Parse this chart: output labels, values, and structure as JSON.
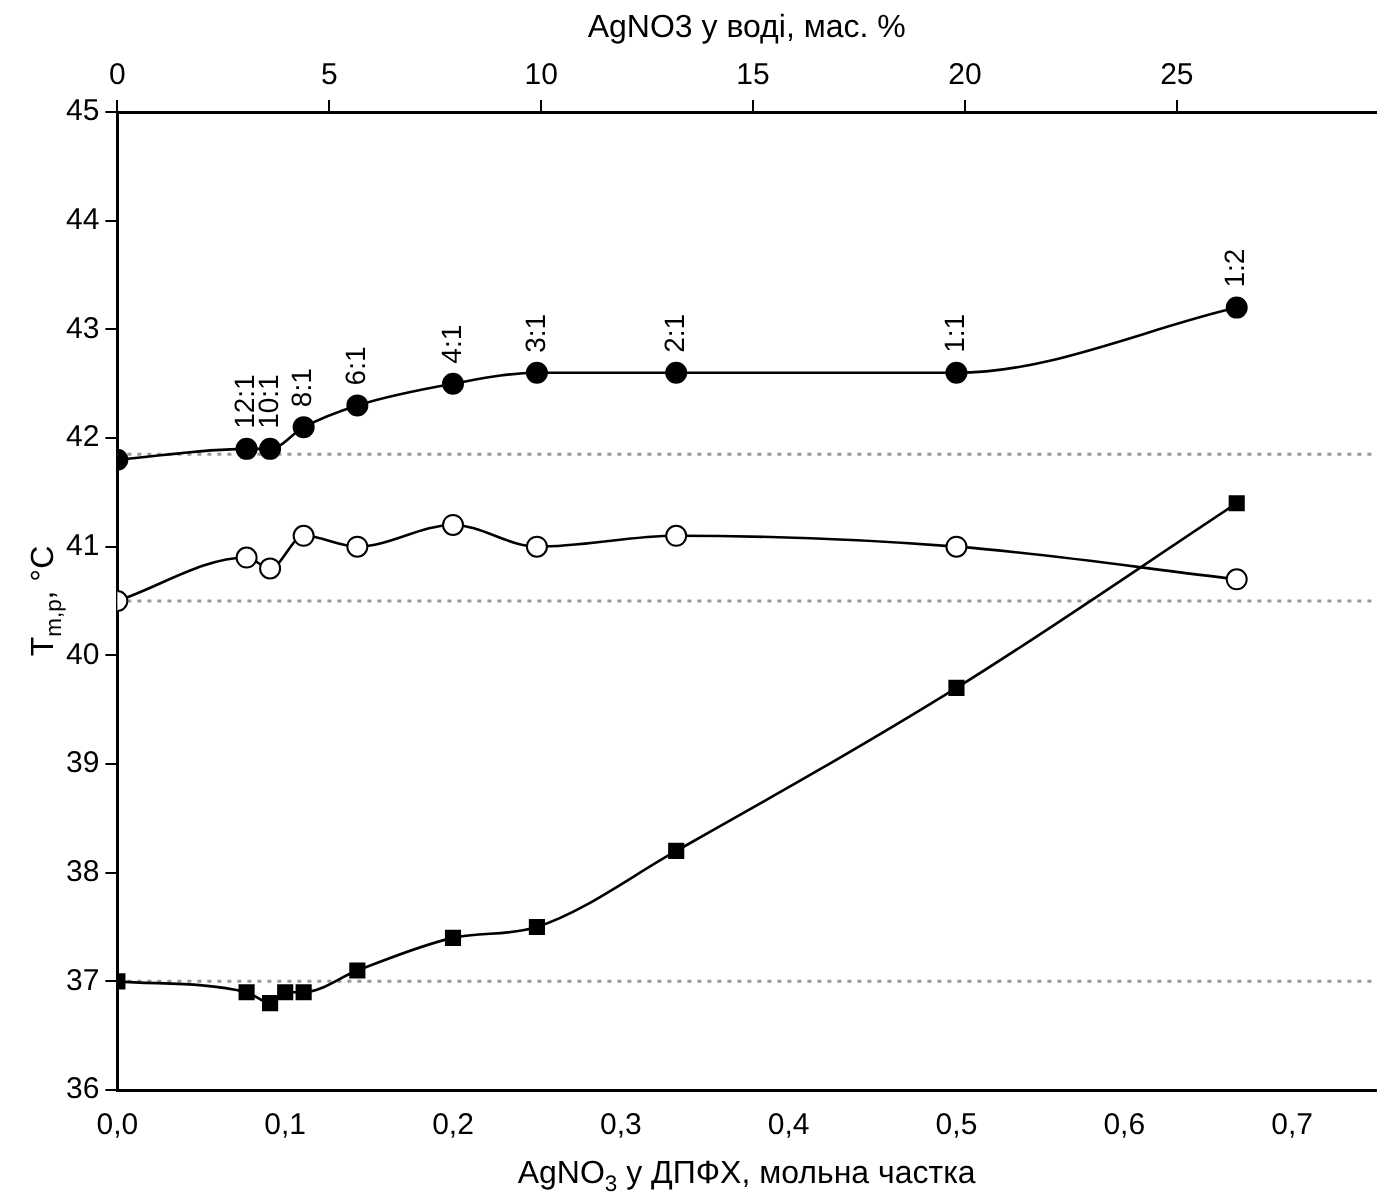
{
  "chart_data": {
    "type": "line",
    "xlabel": "AgNO$_{3}$ у ДПФХ, мольна частка",
    "ylabel": "T$_{m,p}$, °C",
    "x2label": "AgNO3 у воді, мас. %",
    "xlim": [
      0,
      0.75
    ],
    "xticks": [
      {
        "value": 0,
        "label": "0,0"
      },
      {
        "value": 0.1,
        "label": "0,1"
      },
      {
        "value": 0.2,
        "label": "0,2"
      },
      {
        "value": 0.3,
        "label": "0,3"
      },
      {
        "value": 0.4,
        "label": "0,4"
      },
      {
        "value": 0.5,
        "label": "0,5"
      },
      {
        "value": 0.6,
        "label": "0,6"
      },
      {
        "value": 0.7,
        "label": "0,7"
      }
    ],
    "x2lim": [
      0,
      29.7
    ],
    "x2ticks": [
      0,
      5,
      10,
      15,
      20,
      25
    ],
    "ylim": [
      36,
      45
    ],
    "yticks": [
      36,
      37,
      38,
      39,
      40,
      41,
      42,
      43,
      44,
      45
    ],
    "grid": false,
    "legend": false,
    "line_style": "solid",
    "series": [
      {
        "color": "#000000",
        "marker": "circle",
        "x": [
          0,
          0.077,
          0.091,
          0.111,
          0.143,
          0.2,
          0.25,
          0.333,
          0.5,
          0.667
        ],
        "values": [
          41.8,
          41.9,
          41.9,
          42.1,
          42.3,
          42.5,
          42.6,
          42.6,
          42.6,
          43.2
        ]
      },
      {
        "color": "#000000",
        "colors": [
          "#ffffff",
          "#ffffff",
          "#ffffff",
          "#ffffff",
          "#ffffff",
          "#ffffff",
          "#ffffff",
          "#ffffff",
          "#ffffff",
          "#ffffff"
        ],
        "marker": "circle",
        "x": [
          0,
          0.077,
          0.091,
          0.111,
          0.143,
          0.2,
          0.25,
          0.333,
          0.5,
          0.667
        ],
        "values": [
          40.5,
          40.9,
          40.8,
          41.1,
          41.0,
          41.2,
          41.0,
          41.1,
          41.0,
          40.7
        ]
      },
      {
        "color": "#000000",
        "marker": "square",
        "x": [
          0,
          0.077,
          0.091,
          0.1,
          0.111,
          0.143,
          0.2,
          0.25,
          0.333,
          0.5,
          0.667
        ],
        "values": [
          37.0,
          36.9,
          36.8,
          36.9,
          36.9,
          37.1,
          37.4,
          37.5,
          38.2,
          39.7,
          41.4
        ]
      }
    ],
    "ref_lines": [
      {
        "axis": "y",
        "value": 41.85,
        "color": "#999999",
        "line_style": "dotted"
      },
      {
        "axis": "y",
        "value": 40.5,
        "color": "#999999",
        "line_style": "dotted"
      },
      {
        "axis": "y",
        "value": 37.0,
        "color": "#999999",
        "line_style": "dotted"
      }
    ],
    "annotations": [
      {
        "text": "12:1",
        "x": 0.077,
        "y": 41.9
      },
      {
        "text": "10:1",
        "x": 0.091,
        "y": 41.9
      },
      {
        "text": "8:1",
        "x": 0.111,
        "y": 42.1
      },
      {
        "text": "6:1",
        "x": 0.143,
        "y": 42.3
      },
      {
        "text": "4:1",
        "x": 0.2,
        "y": 42.5
      },
      {
        "text": "3:1",
        "x": 0.25,
        "y": 42.6
      },
      {
        "text": "2:1",
        "x": 0.333,
        "y": 42.6
      },
      {
        "text": "1:1",
        "x": 0.5,
        "y": 42.6
      },
      {
        "text": "1:2",
        "x": 0.667,
        "y": 43.2
      }
    ]
  }
}
